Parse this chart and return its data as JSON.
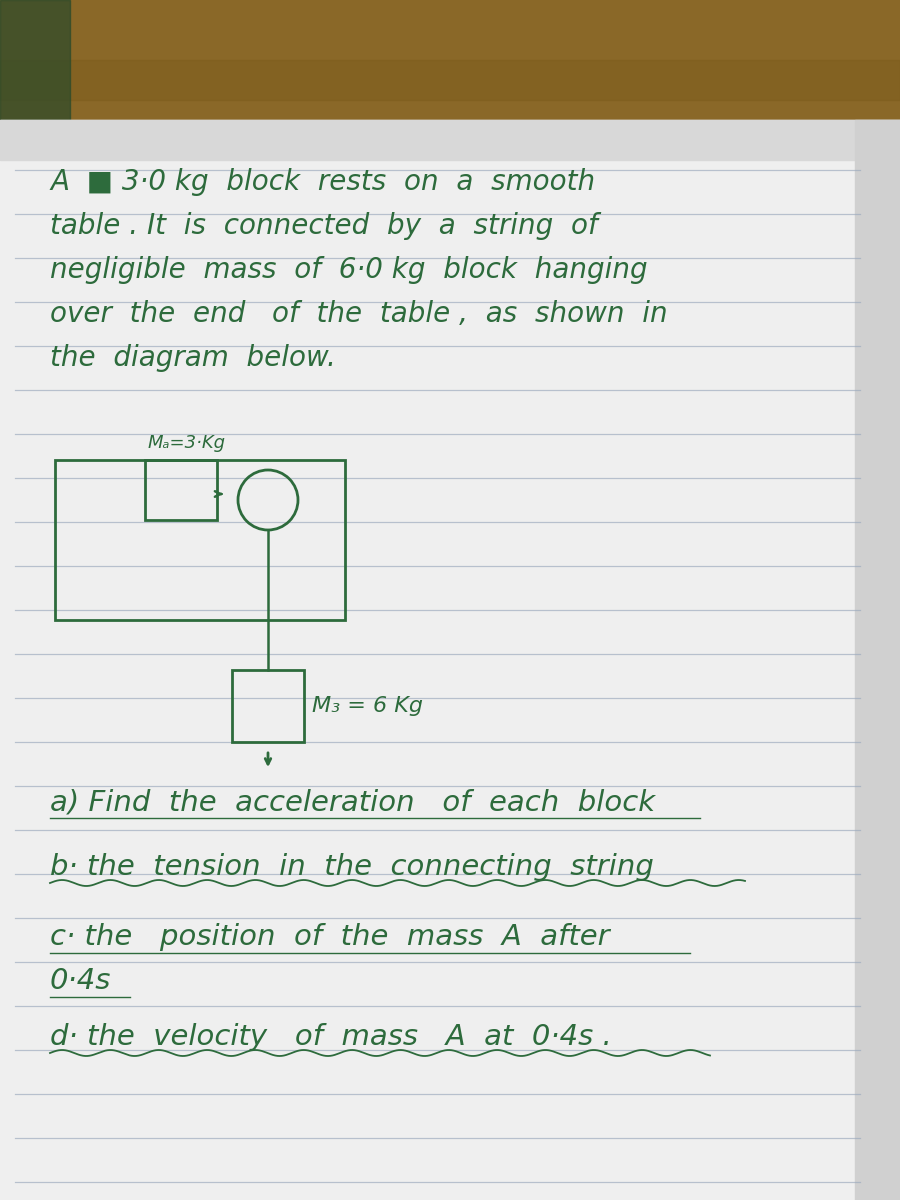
{
  "ink_color": "#2d6b3c",
  "paper_color": "#efefef",
  "line_color": "#9aa8bc",
  "wood_color": "#8a6828",
  "wood_color2": "#7a5a1a",
  "figsize": [
    9.0,
    12.0
  ],
  "dpi": 100,
  "text_lines": [
    "A  ■ 3·0 kg  block  rests  on  a  smooth",
    "table . It  is  connected  by  a  string  of",
    "negligible  mass  of  6·0 kg  block  hanging",
    "over  the  end   of  the  table ,  as  shown  in",
    "the  diagram  below."
  ],
  "label_ma": "Mₐ=3·Kg",
  "label_mb": "M₃ = 6 Kg",
  "q_a": "a) Find  the  acceleration   of  each  block",
  "q_b": "b· the  tension  in  the  connecting  string",
  "q_c": "c· the   position  of  the  mass  A  after",
  "q_c2": "0·4s",
  "q_d": "d· the  velocity   of  mass   A  at  0·4s ."
}
